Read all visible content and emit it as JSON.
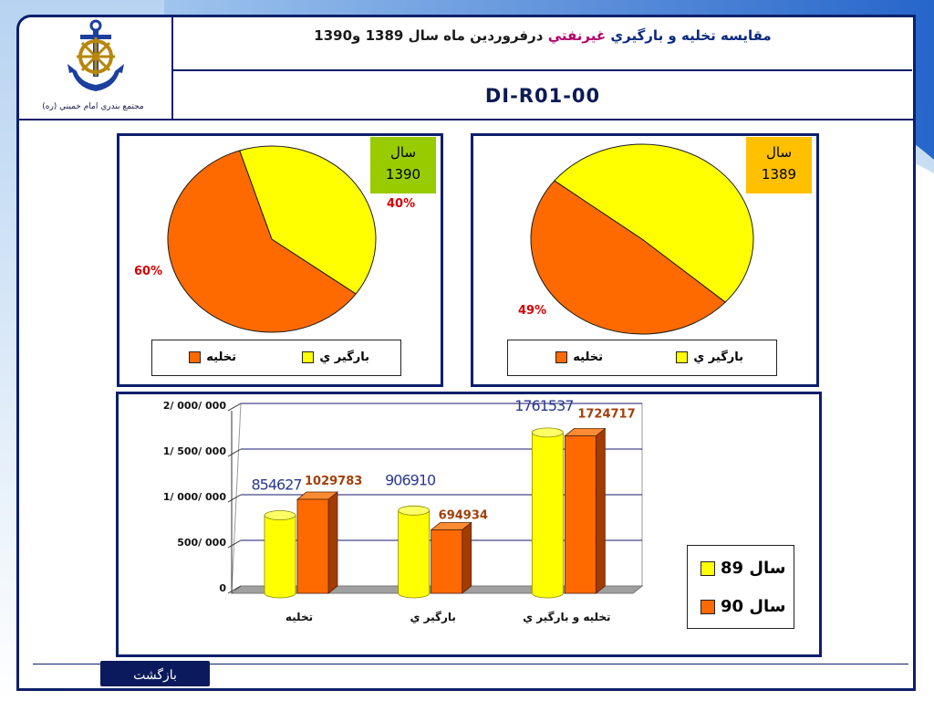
{
  "header": {
    "title_part1": "مقايسه تخليه و بارگيري",
    "title_part2": "غيرنفتي",
    "title_part3": "درفروردين ماه سال 1389 و1390",
    "doc_code": "DI-R01-00",
    "org_name": "مجتمع بندري امام خميني (ره)"
  },
  "colors": {
    "frame": "#0d1f6b",
    "unload": "#ff6a00",
    "load": "#ffff00",
    "badge_1390": "#99cc00",
    "badge_1389": "#ffc000",
    "pct_red": "#d40000",
    "series89_label": "#2a3a8f",
    "series90_label": "#a0400a"
  },
  "pie_1390": {
    "badge_line1": "سال",
    "badge_line2": "1390",
    "unload_pct_label": "60%",
    "load_pct_label": "40%",
    "legend_unload": "تخليه",
    "legend_load": "بارگير ي"
  },
  "pie_1389": {
    "badge_line1": "سال",
    "badge_line2": "1389",
    "unload_pct_label": "49%",
    "legend_unload": "تخليه",
    "legend_load": "بارگير ي"
  },
  "bar_legend": {
    "series89": "سال 89",
    "series90": "سال 90"
  },
  "chart_data": [
    {
      "type": "pie",
      "title": "",
      "categories": [
        "تخليه",
        "بارگير ي"
      ],
      "values": [
        60,
        40
      ],
      "labels": [
        "60%",
        "40%"
      ],
      "badge": [
        "سال",
        "1390"
      ]
    },
    {
      "type": "pie",
      "title": "",
      "categories": [
        "تخليه",
        "بارگير ي"
      ],
      "values": [
        49,
        51
      ],
      "labels": [
        "49%"
      ],
      "badge": [
        "سال",
        "1389"
      ]
    },
    {
      "type": "bar",
      "title": "",
      "categories": [
        "تخليه",
        "بارگير ي",
        "تخليه و بارگير ي"
      ],
      "series": [
        {
          "name": "سال 89",
          "values": [
            854627,
            906910,
            1761537
          ],
          "labels": [
            "854627",
            "906910",
            "1761537"
          ]
        },
        {
          "name": "سال 90",
          "values": [
            1029783,
            694934,
            1724717
          ],
          "labels": [
            "1029783",
            "694934",
            "1724717"
          ]
        }
      ],
      "ylim": [
        0,
        2000000
      ],
      "yticks": [
        0,
        500000,
        1000000,
        1500000,
        2000000
      ],
      "ytick_labels": [
        "0",
        "500/ 000",
        "1/ 000/ 000",
        "1/ 500/ 000",
        "2/ 000/ 000"
      ],
      "grid": true,
      "legend": "right"
    }
  ],
  "footer": {
    "back_label": "بازگشت"
  }
}
